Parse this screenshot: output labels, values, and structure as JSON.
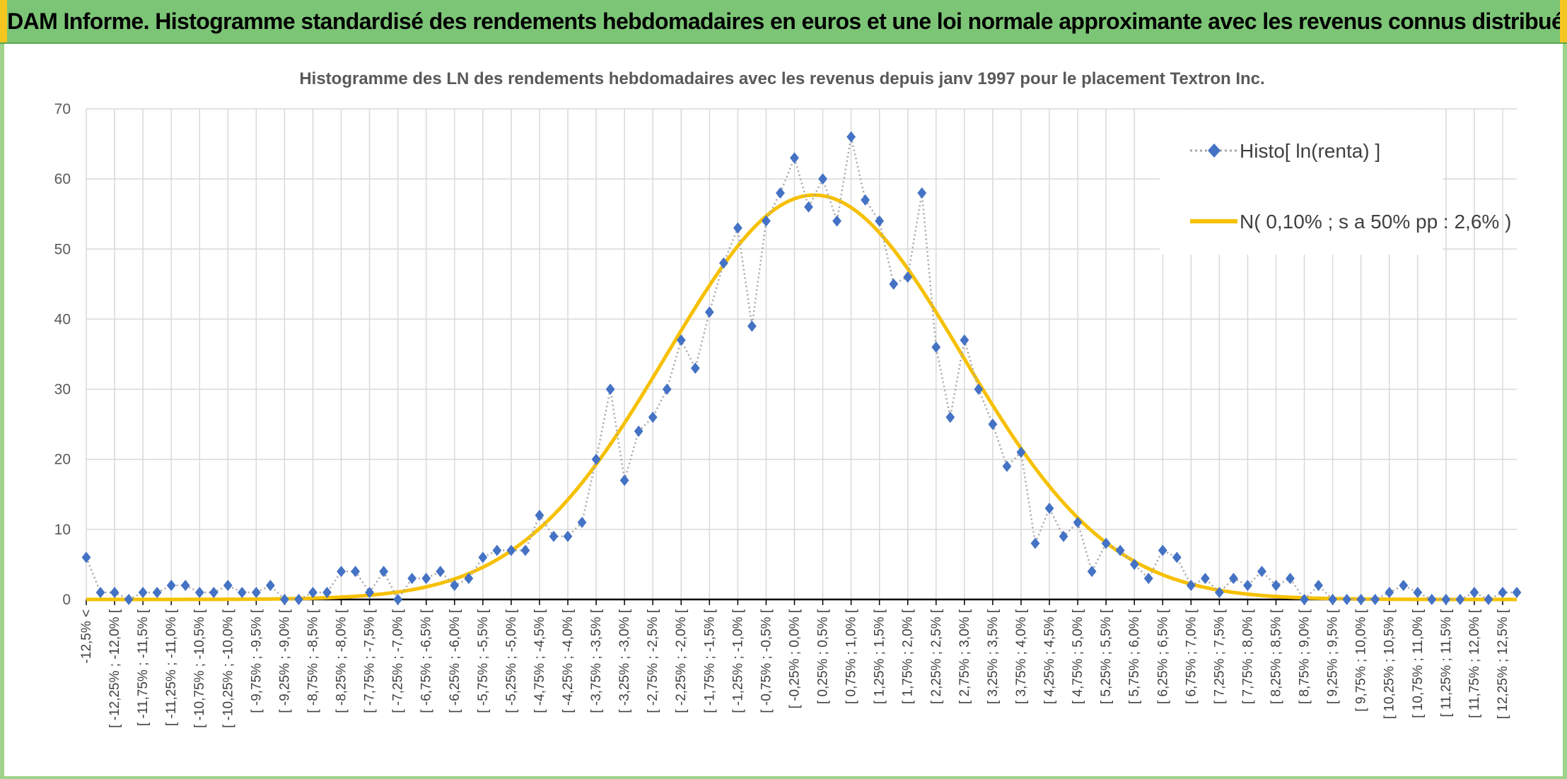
{
  "header": {
    "title": "ADAM Informe. Histogramme standardisé des rendements hebdomadaires en euros et une loi normale approximante avec les revenus connus distribués"
  },
  "colors": {
    "header_bg": "#7cc576",
    "histo_marker": "#4472c4",
    "histo_line": "#a6a6a6",
    "normal_curve": "#f6c000",
    "grid": "#d9d9d9"
  },
  "chart_data": {
    "type": "line",
    "title": "Histogramme des LN des rendements hebdomadaires avec les revenus depuis janv 1997 pour le placement Textron Inc.",
    "xlabel": "",
    "ylabel": "",
    "ylim": [
      0,
      70
    ],
    "yticks": [
      0,
      10,
      20,
      30,
      40,
      50,
      60,
      70
    ],
    "grid": true,
    "legend_position": "top-right",
    "categories": [
      "-12,5% <",
      "[ -12,25% ; -12,0% [",
      "[ -11,75% ; -11,5% [",
      "[ -11,25% ; -11,0% [",
      "[ -10,75% ; -10,5% [",
      "[ -10,25% ; -10,0% [",
      "[ -9,75% ; -9,5% [",
      "[ -9,25% ; -9,0% [",
      "[ -8,75% ; -8,5% [",
      "[ -8,25% ; -8,0% [",
      "[ -7,75% ; -7,5% [",
      "[ -7,25% ; -7,0% [",
      "[ -6,75% ; -6,5% [",
      "[ -6,25% ; -6,0% [",
      "[ -5,75% ; -5,5% [",
      "[ -5,25% ; -5,0% [",
      "[ -4,75% ; -4,5% [",
      "[ -4,25% ; -4,0% [",
      "[ -3,75% ; -3,5% [",
      "[ -3,25% ; -3,0% [",
      "[ -2,75% ; -2,5% [",
      "[ -2,25% ; -2,0% [",
      "[ -1,75% ; -1,5% [",
      "[ -1,25% ; -1,0% [",
      "[ -0,75% ; -0,5% [",
      "[ -0,25% ; 0,0% [",
      "[ 0,25% ; 0,5% [",
      "[ 0,75% ; 1,0% [",
      "[ 1,25% ; 1,5% [",
      "[ 1,75% ; 2,0% [",
      "[ 2,25% ; 2,5% [",
      "[ 2,75% ; 3,0% [",
      "[ 3,25% ; 3,5% [",
      "[ 3,75% ; 4,0% [",
      "[ 4,25% ; 4,5% [",
      "[ 4,75% ; 5,0% [",
      "[ 5,25% ; 5,5% [",
      "[ 5,75% ; 6,0% [",
      "[ 6,25% ; 6,5% [",
      "[ 6,75% ; 7,0% [",
      "[ 7,25% ; 7,5% [",
      "[ 7,75% ; 8,0% [",
      "[ 8,25% ; 8,5% [",
      "[ 8,75% ; 9,0% [",
      "[ 9,25% ; 9,5% [",
      "[ 9,75% ; 10,0% [",
      "[ 10,25% ; 10,5% [",
      "[ 10,75% ; 11,0% [",
      "[ 11,25% ; 11,5% [",
      "[ 11,75% ; 12,0% [",
      "[ 12,25% ; 12,5% ["
    ],
    "histogram_values": [
      6,
      1,
      1,
      0,
      1,
      1,
      2,
      2,
      1,
      1,
      2,
      1,
      1,
      2,
      0,
      0,
      1,
      1,
      4,
      4,
      1,
      4,
      0,
      3,
      3,
      4,
      2,
      3,
      6,
      7,
      7,
      7,
      12,
      9,
      9,
      11,
      20,
      30,
      17,
      24,
      26,
      30,
      37,
      33,
      41,
      48,
      53,
      39,
      54,
      58,
      63,
      56,
      60,
      54,
      66,
      57,
      54,
      45,
      46,
      58,
      36,
      26,
      37,
      30,
      25,
      19,
      21,
      8,
      13,
      9,
      11,
      4,
      8,
      7,
      5,
      3,
      7,
      6,
      2,
      3,
      1,
      3,
      2,
      4,
      2,
      3,
      0,
      2,
      0,
      0,
      0,
      0,
      1,
      2,
      1,
      0,
      0,
      0,
      1,
      0,
      1,
      1
    ],
    "normal_curve": {
      "mean_bin": 51.4,
      "sd_bins": 10.4,
      "peak": 57.7
    },
    "series": [
      {
        "name": "Histo[ ln(renta) ]",
        "style": "dotted line with diamond markers"
      },
      {
        "name": "N( 0,10% ; s a 50% pp : 2,6% )",
        "style": "solid line"
      }
    ]
  }
}
